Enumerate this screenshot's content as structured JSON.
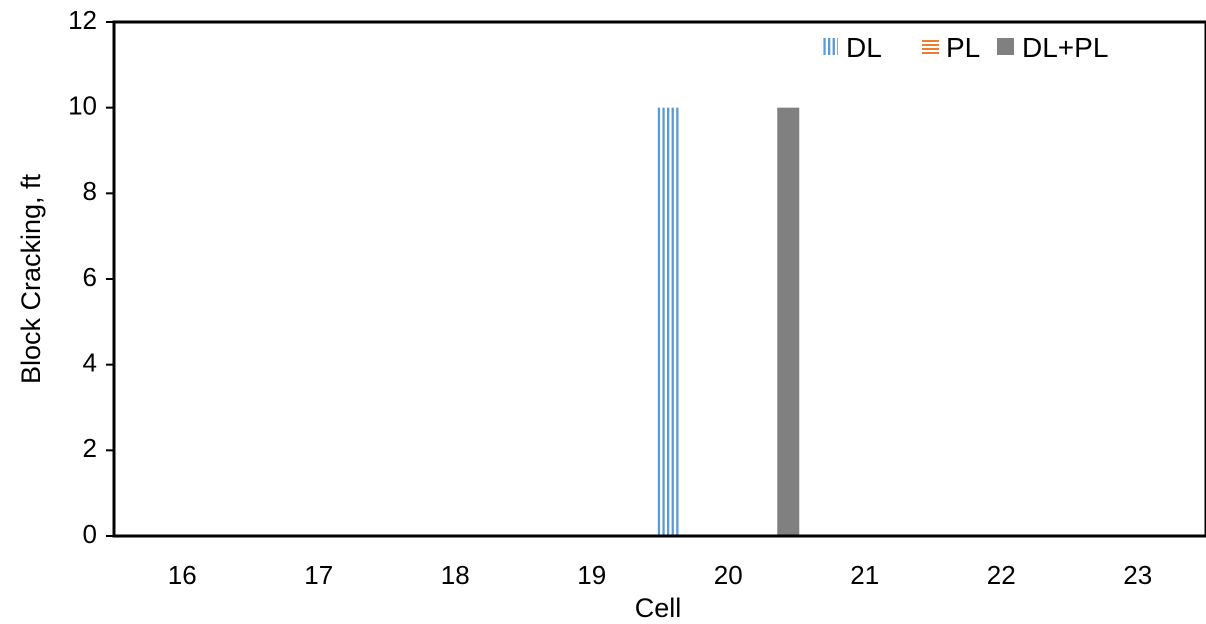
{
  "chart_data": {
    "type": "bar",
    "title": "",
    "xlabel": "Cell",
    "ylabel": "Block Cracking, ft",
    "categories": [
      "16",
      "17",
      "18",
      "19",
      "20",
      "21",
      "22",
      "23"
    ],
    "series": [
      {
        "name": "DL",
        "values": [
          0,
          0,
          0,
          0,
          10,
          0,
          0,
          0
        ],
        "color": "#5b9bd5",
        "pattern": "vertical-lines"
      },
      {
        "name": "PL",
        "values": [
          0,
          0,
          0,
          0,
          0,
          0,
          0,
          0
        ],
        "color": "#ed7d31",
        "pattern": "horizontal-lines"
      },
      {
        "name": "DL+PL",
        "values": [
          0,
          0,
          0,
          0,
          10,
          0,
          0,
          0
        ],
        "color": "#808080",
        "pattern": "solid"
      }
    ],
    "ylim": [
      0,
      12
    ],
    "yticks": [
      0,
      2,
      4,
      6,
      8,
      10,
      12
    ],
    "grid": false,
    "legend_position": "top-right"
  }
}
